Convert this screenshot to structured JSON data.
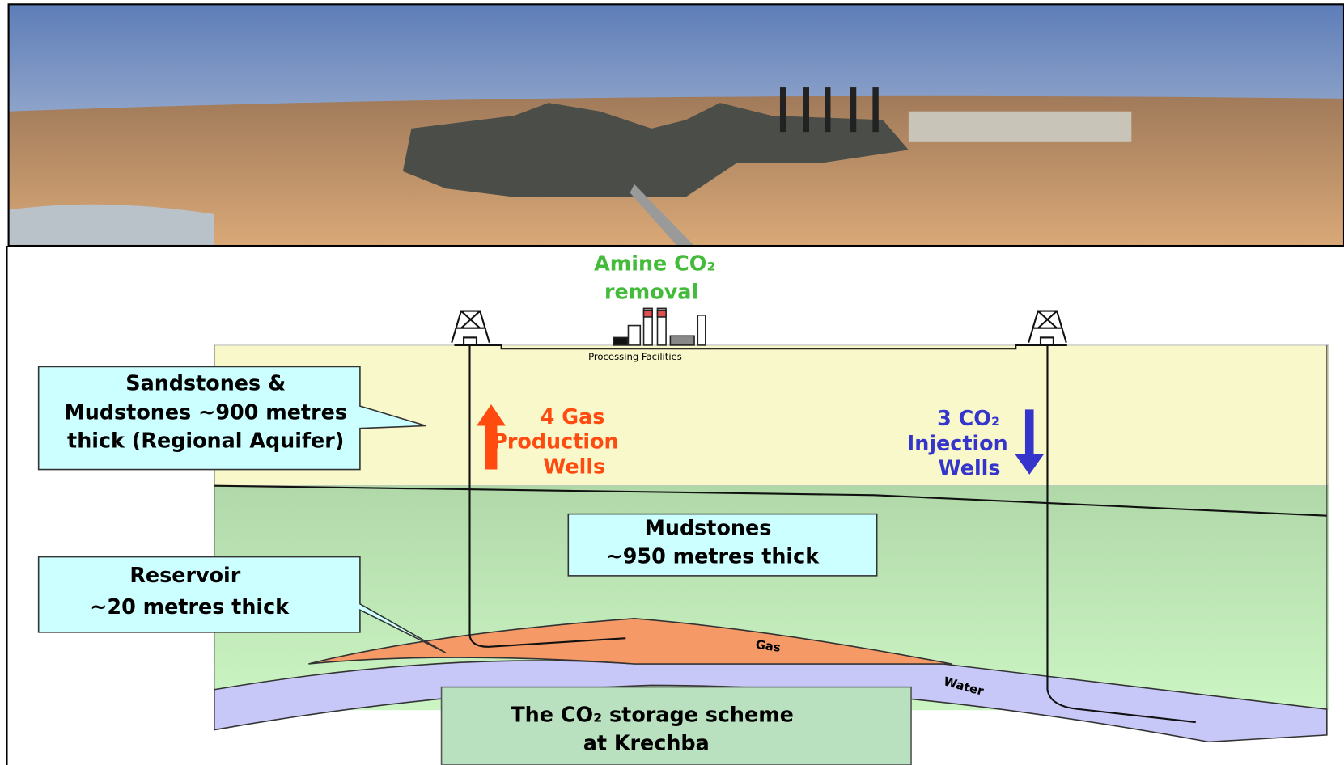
{
  "labels": {
    "amine": [
      "Amine CO₂",
      "removal"
    ],
    "processing": "Processing Facilities",
    "sandstones": [
      "Sandstones &",
      "Mudstones ~900 metres",
      "thick (Regional Aquifer)"
    ],
    "production": [
      "4 Gas",
      "Production",
      "Wells"
    ],
    "injection": [
      "3 CO₂",
      "Injection",
      "Wells"
    ],
    "mudstones": [
      "Mudstones",
      "~950 metres thick"
    ],
    "reservoir": [
      "Reservoir",
      "~20 metres thick"
    ],
    "gas": "Gas",
    "water": "Water",
    "caption": [
      "The CO₂ storage scheme",
      "at Krechba"
    ]
  }
}
